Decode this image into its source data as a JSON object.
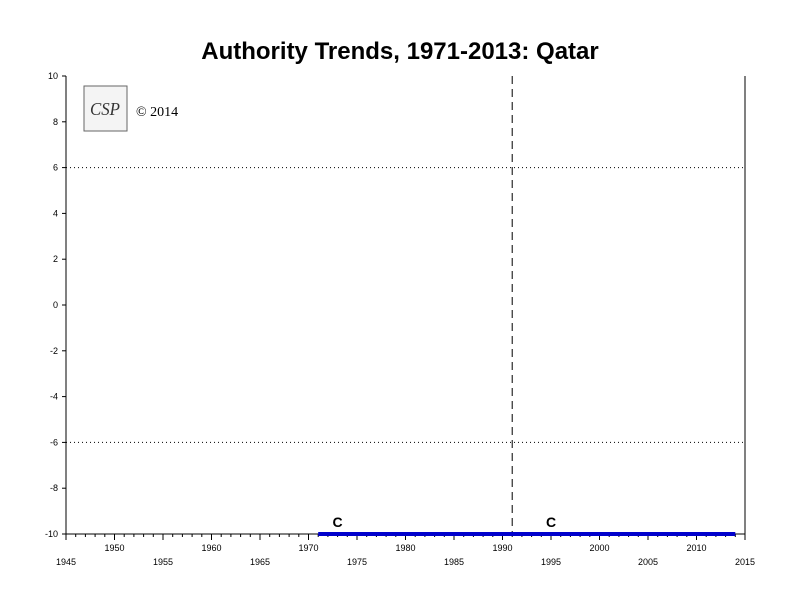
{
  "chart_data": {
    "type": "line",
    "title": "Authority Trends, 1971-2013: Qatar",
    "xlabel": "",
    "ylabel": "",
    "xlim": [
      1945,
      2015
    ],
    "ylim": [
      -10,
      10
    ],
    "y_ticks": [
      10,
      8,
      6,
      4,
      2,
      0,
      -2,
      -4,
      -6,
      -8,
      -10
    ],
    "x_ticks_lower": [
      1945,
      1955,
      1965,
      1975,
      1985,
      1995,
      2005,
      2015
    ],
    "x_ticks_upper": [
      1950,
      1960,
      1970,
      1980,
      1990,
      2000,
      2010
    ],
    "grid": false,
    "reference_lines": [
      6,
      -6
    ],
    "vertical_reference_year": 1991,
    "series": [
      {
        "color": "#0000cc",
        "x": [
          1971,
          2014
        ],
        "y": [
          -10,
          -10
        ]
      }
    ],
    "annotations": [
      {
        "text": "C",
        "x": 1973,
        "y": -10
      },
      {
        "text": "C",
        "x": 1995,
        "y": -10
      }
    ]
  },
  "logo": {
    "text": "CSP",
    "copyright": "© 2014"
  }
}
